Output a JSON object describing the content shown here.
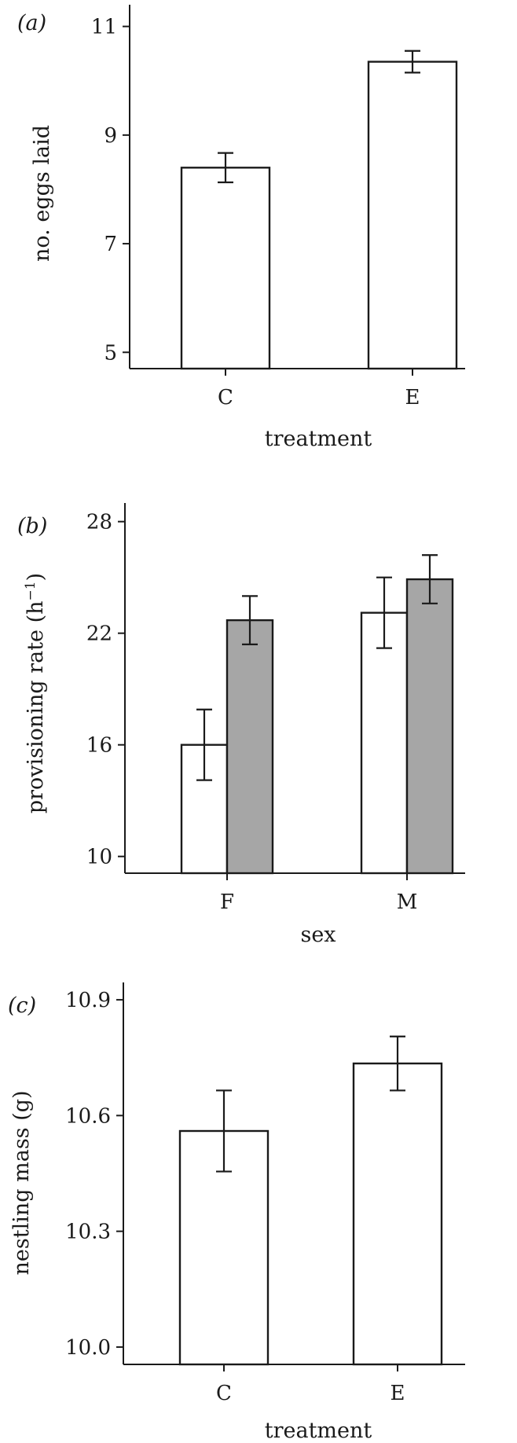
{
  "chart_data": [
    {
      "type": "bar",
      "panel_label": "(a)",
      "xlabel": "treatment",
      "ylabel": "no. eggs laid",
      "categories": [
        "C",
        "E"
      ],
      "series": [
        {
          "values": [
            8.4,
            10.35
          ],
          "errors": [
            0.27,
            0.2
          ],
          "color": "#ffffff"
        }
      ],
      "ylim": [
        4.7,
        11.4
      ],
      "yticks": [
        5,
        7,
        9,
        11
      ],
      "ytick_labels": [
        "5",
        "7",
        "9",
        "11"
      ],
      "grid": false
    },
    {
      "type": "bar",
      "panel_label": "(b)",
      "xlabel": "sex",
      "ylabel": "provisioning rate (h",
      "ylabel_superscript": "−1",
      "ylabel_suffix": ")",
      "categories": [
        "F",
        "M"
      ],
      "series": [
        {
          "values": [
            16.0,
            23.1
          ],
          "errors": [
            1.9,
            1.9
          ],
          "color": "#ffffff"
        },
        {
          "values": [
            22.7,
            24.9
          ],
          "errors": [
            1.3,
            1.3
          ],
          "color": "#a6a6a6"
        }
      ],
      "ylim": [
        9.1,
        29.0
      ],
      "yticks": [
        10,
        16,
        22,
        28
      ],
      "ytick_labels": [
        "10",
        "16",
        "22",
        "28"
      ],
      "grid": false
    },
    {
      "type": "bar",
      "panel_label": "(c)",
      "xlabel": "treatment",
      "ylabel": "nestling mass (g)",
      "categories": [
        "C",
        "E"
      ],
      "series": [
        {
          "values": [
            10.56,
            10.735
          ],
          "errors": [
            0.105,
            0.07
          ],
          "color": "#ffffff"
        }
      ],
      "ylim": [
        9.955,
        10.945
      ],
      "yticks": [
        10.0,
        10.3,
        10.6,
        10.9
      ],
      "ytick_labels": [
        "10.0",
        "10.3",
        "10.6",
        "10.9"
      ],
      "grid": false
    }
  ]
}
